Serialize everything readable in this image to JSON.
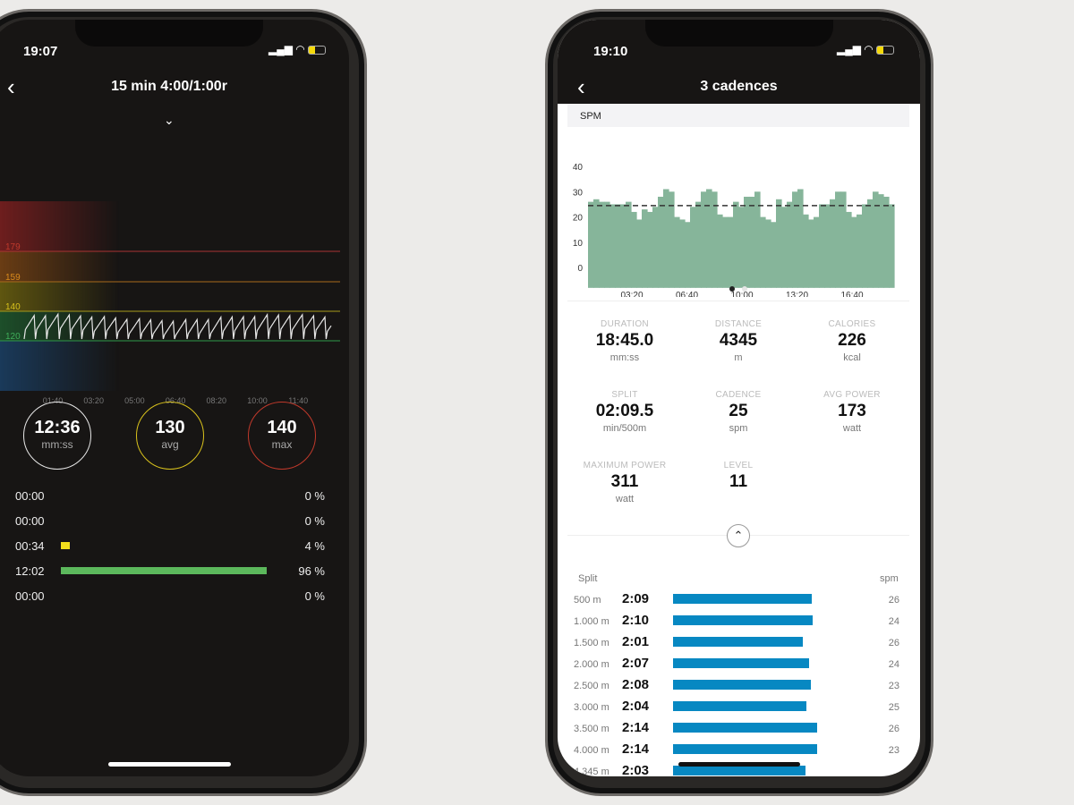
{
  "left_phone": {
    "status_time": "19:07",
    "title": "15 min  4:00/1:00r",
    "icons": [
      "back-chevron-icon",
      "chevron-down-icon",
      "signal-icon",
      "wifi-icon",
      "battery-icon"
    ],
    "hr_chart": {
      "type": "line",
      "zone_labels": [
        "179",
        "159",
        "140",
        "120"
      ],
      "zone_colors": [
        "#c0392b",
        "#d98a1c",
        "#d9c21c",
        "#3fae5a"
      ],
      "x_ticks": [
        "01:40",
        "03:20",
        "05:00",
        "06:40",
        "08:20",
        "10:00",
        "11:40"
      ],
      "y_range": [
        120,
        140
      ]
    },
    "summary": [
      {
        "value": "12:36",
        "unit": "mm:ss",
        "color": "#e8e8e8"
      },
      {
        "value": "130",
        "unit": "avg",
        "color": "#d9c21c"
      },
      {
        "value": "140",
        "unit": "max",
        "color": "#c0392b"
      }
    ],
    "zones": [
      {
        "time": "00:00",
        "percent": 0,
        "label": "0 %",
        "color": "#c0392b"
      },
      {
        "time": "00:00",
        "percent": 0,
        "label": "0 %",
        "color": "#d98a1c"
      },
      {
        "time": "00:34",
        "percent": 4,
        "label": "4 %",
        "color": "#f2de1c"
      },
      {
        "time": "12:02",
        "percent": 96,
        "label": "96 %",
        "color": "#5cb85c"
      },
      {
        "time": "00:00",
        "percent": 0,
        "label": "0 %",
        "color": "#3a7bd5"
      }
    ]
  },
  "right_phone": {
    "status_time": "19:10",
    "title": "3 cadences",
    "chart_header": "SPM",
    "stats": [
      {
        "label": "DURATION",
        "value": "18:45.0",
        "unit": "mm:ss"
      },
      {
        "label": "DISTANCE",
        "value": "4345",
        "unit": "m"
      },
      {
        "label": "CALORIES",
        "value": "226",
        "unit": "kcal"
      },
      {
        "label": "SPLIT",
        "value": "02:09.5",
        "unit": "min/500m"
      },
      {
        "label": "CADENCE",
        "value": "25",
        "unit": "spm"
      },
      {
        "label": "AVG POWER",
        "value": "173",
        "unit": "watt"
      },
      {
        "label": "MAXIMUM POWER",
        "value": "311",
        "unit": "watt"
      },
      {
        "label": "LEVEL",
        "value": "11",
        "unit": ""
      }
    ],
    "splits_header": {
      "left": "Split",
      "right": "spm"
    },
    "splits": [
      {
        "distance": "500 m",
        "time": "2:09",
        "seconds": 129,
        "spm": "26"
      },
      {
        "distance": "1.000 m",
        "time": "2:10",
        "seconds": 130,
        "spm": "24"
      },
      {
        "distance": "1.500 m",
        "time": "2:01",
        "seconds": 121,
        "spm": "26"
      },
      {
        "distance": "2.000 m",
        "time": "2:07",
        "seconds": 127,
        "spm": "24"
      },
      {
        "distance": "2.500 m",
        "time": "2:08",
        "seconds": 128,
        "spm": "23"
      },
      {
        "distance": "3.000 m",
        "time": "2:04",
        "seconds": 124,
        "spm": "25"
      },
      {
        "distance": "3.500 m",
        "time": "2:14",
        "seconds": 134,
        "spm": "26"
      },
      {
        "distance": "4.000 m",
        "time": "2:14",
        "seconds": 134,
        "spm": "23"
      },
      {
        "distance": "4.345 m",
        "time": "2:03",
        "seconds": 123,
        "spm": ""
      }
    ],
    "split_bar_color": "#0788c2"
  },
  "chart_data": {
    "type": "area",
    "title": "SPM",
    "y_ticks": [
      "40",
      "30",
      "20",
      "10",
      "0"
    ],
    "x_ticks": [
      "03:20",
      "06:40",
      "10:00",
      "13:20",
      "16:40"
    ],
    "ylim": [
      -8,
      40
    ],
    "average": 24.5,
    "color": "#86b59a",
    "values": [
      26,
      27,
      26,
      26,
      25,
      25,
      25,
      26,
      22,
      19,
      23,
      22,
      24,
      28,
      31,
      30,
      20,
      19,
      18,
      24,
      26,
      30,
      31,
      30,
      21,
      20,
      20,
      26,
      24,
      28,
      28,
      30,
      20,
      19,
      18,
      27,
      24,
      26,
      30,
      31,
      21,
      19,
      20,
      25,
      25,
      27,
      30,
      30,
      22,
      20,
      21,
      25,
      27,
      30,
      29,
      28,
      25
    ]
  }
}
